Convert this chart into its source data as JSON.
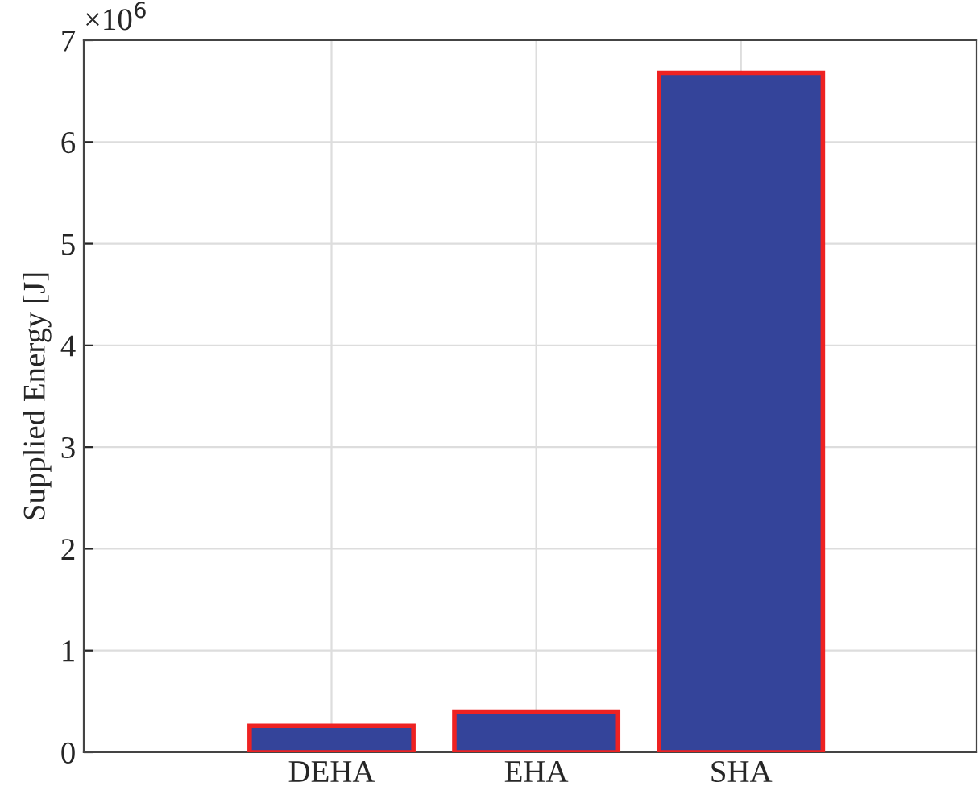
{
  "chart_data": {
    "type": "bar",
    "ylabel": "Supplied Energy [J]",
    "categories": [
      "DEHA",
      "EHA",
      "SHA"
    ],
    "values": [
      0.26,
      0.4,
      6.68
    ],
    "color": "#34449a",
    "ylim": [
      0,
      7
    ],
    "yticks": [
      0,
      1,
      2,
      3,
      4,
      5,
      6,
      7
    ],
    "annotations": [
      "×10$^{6}$"
    ],
    "grid": true
  }
}
